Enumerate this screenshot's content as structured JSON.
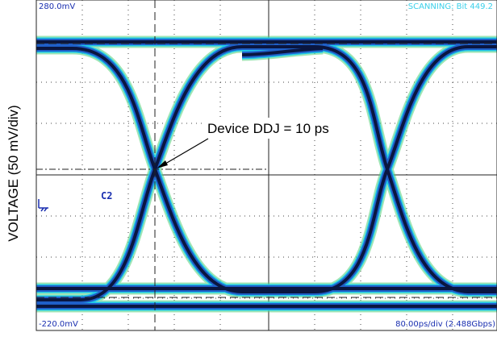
{
  "screen": {
    "top_level": "280.0mV",
    "status": "SCANNING: Bit 449.2",
    "channel": "C2",
    "bottom_level": "-220.0mV",
    "timebase": "80.00ps/div (2.488Gbps)"
  },
  "annotation": "Device DDJ = 10 ps",
  "y_axis_label": "VOLTAGE (50 mV/div)"
}
